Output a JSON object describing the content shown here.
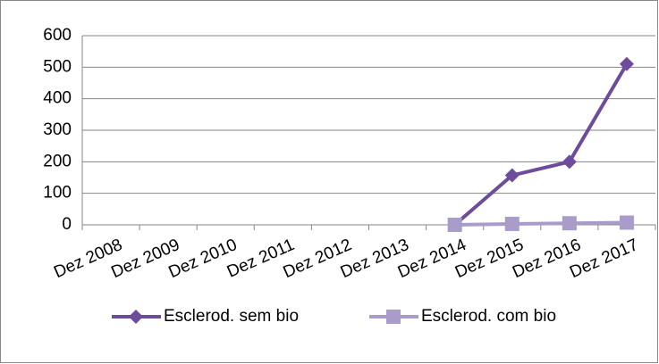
{
  "chart_data": {
    "type": "line",
    "categories": [
      "Dez 2008",
      "Dez 2009",
      "Dez 2010",
      "Dez 2011",
      "Dez 2012",
      "Dez 2013",
      "Dez 2014",
      "Dez 2015",
      "Dez 2016",
      "Dez 2017"
    ],
    "series": [
      {
        "name": "Esclerod. sem bio",
        "color": "#6e4c9c",
        "marker": "diamond",
        "values": [
          null,
          null,
          null,
          null,
          null,
          null,
          0,
          157,
          200,
          510
        ]
      },
      {
        "name": "Esclerod. com bio",
        "color": "#a99cca",
        "marker": "square",
        "values": [
          null,
          null,
          null,
          null,
          null,
          null,
          0,
          3,
          5,
          7
        ]
      }
    ],
    "ylim": [
      0,
      600
    ],
    "yticks": [
      0,
      100,
      200,
      300,
      400,
      500,
      600
    ],
    "grid": true,
    "legend": "bottom"
  }
}
